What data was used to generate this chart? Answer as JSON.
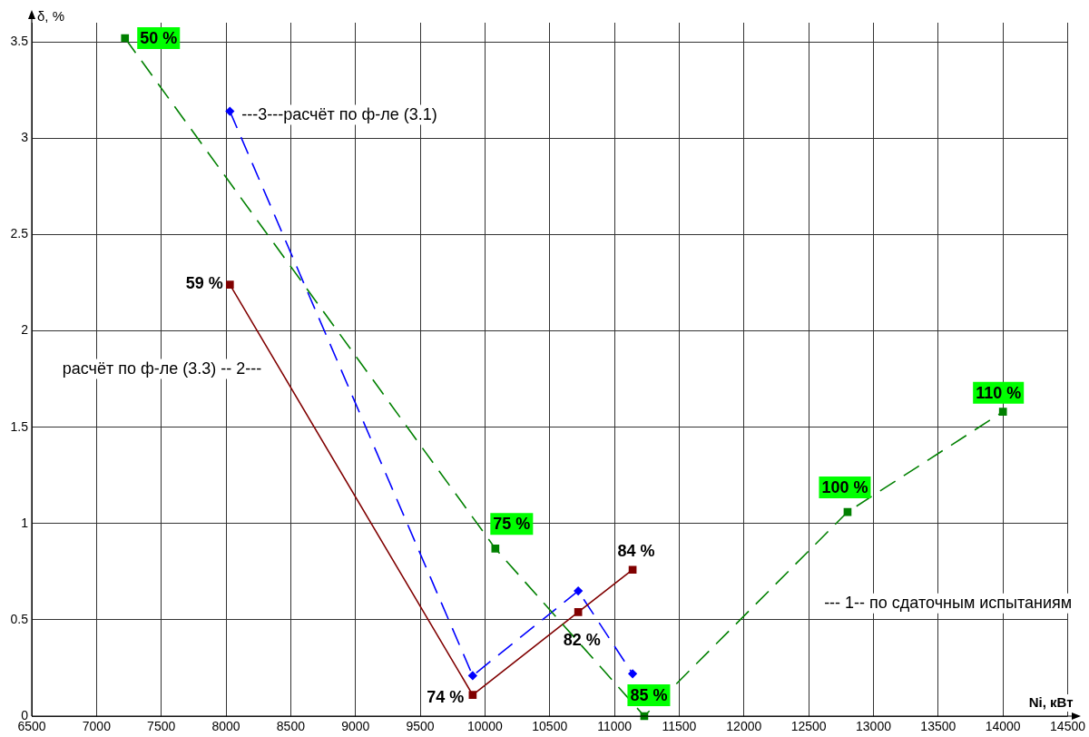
{
  "chart_data": {
    "type": "line",
    "xlabel": "Ni, кВт",
    "ylabel": "δ, %",
    "xlim": [
      6500,
      14500
    ],
    "xticks": [
      6500,
      7000,
      7500,
      8000,
      8500,
      9000,
      9500,
      10000,
      10500,
      11000,
      11500,
      12000,
      12500,
      13000,
      13500,
      14000,
      14500
    ],
    "ylim": [
      0,
      3.6
    ],
    "yticks": [
      0,
      0.5,
      1,
      1.5,
      2,
      2.5,
      3,
      3.5
    ],
    "grid": true,
    "series": [
      {
        "name": "--- 1-- по сдаточным испытаниям",
        "color": "#008000",
        "marker": "square",
        "line_style": "dashed",
        "x": [
          7220,
          10080,
          11230,
          12800,
          14000
        ],
        "values": [
          3.52,
          0.87,
          0,
          1.06,
          1.58
        ]
      },
      {
        "name": "расчёт по ф-ле (3.3) -- 2---",
        "color": "#800000",
        "marker": "square",
        "line_style": "solid",
        "x": [
          8030,
          9905,
          10720,
          11140
        ],
        "values": [
          2.24,
          0.11,
          0.54,
          0.76
        ]
      },
      {
        "name": "---3---расчёт по ф-ле (3.1)",
        "color": "#0000ff",
        "marker": "diamond",
        "line_style": "dashed",
        "x": [
          8030,
          9905,
          10720,
          11140
        ],
        "values": [
          3.14,
          0.21,
          0.65,
          0.22
        ]
      }
    ],
    "annotations": [
      {
        "text": "50 %",
        "x": 7220,
        "y": 3.52
      },
      {
        "text": "75 %",
        "x": 10080,
        "y": 0.87
      },
      {
        "text": "85 %",
        "x": 11230,
        "y": 0
      },
      {
        "text": "100 %",
        "x": 12800,
        "y": 1.06
      },
      {
        "text": "110 %",
        "x": 14000,
        "y": 1.58
      },
      {
        "text": "59 %",
        "x": 8030,
        "y": 2.24
      },
      {
        "text": "74 %",
        "x": 9905,
        "y": 0.11
      },
      {
        "text": "82 %",
        "x": 10720,
        "y": 0.54
      },
      {
        "text": "84 %",
        "x": 11140,
        "y": 0.76
      }
    ]
  }
}
